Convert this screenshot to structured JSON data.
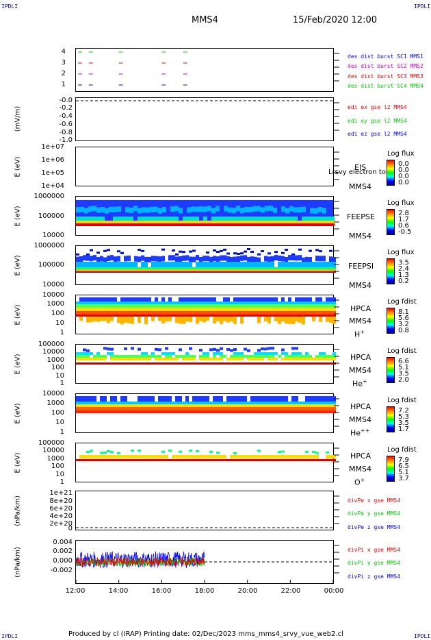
{
  "header": {
    "corner_left": "IPDLI",
    "corner_right": "IPDLI",
    "spacecraft": "MMS4",
    "date": "15/Feb/2020 12:00"
  },
  "footer": {
    "text": "Produced by cl (IRAP)   Printing date: 02/Dec/2023   mms_mms4_srvy_vue_web2.cl"
  },
  "colors": {
    "sc1": "#0000ff",
    "sc2": "#cc00cc",
    "sc3": "#ee0000",
    "sc4": "#00cc00"
  },
  "x_ticks": [
    "12:00",
    "14:00",
    "16:00",
    "18:00",
    "20:00",
    "22:00",
    "00:00"
  ],
  "chart_data": [
    {
      "type": "scatter",
      "panel": "des-dist-burst",
      "y_ticks": [
        "4",
        "3",
        "2",
        "1"
      ],
      "legend": [
        "des dist burst SC1 MMS1",
        "des dist burst SC2 MMS2",
        "des dist burst SC3 MMS3",
        "des dist burst SC4 MMS4"
      ],
      "series": [
        {
          "name": "des dist burst SC1 MMS1",
          "y": 1,
          "x_hours": [
            12.1,
            12.6,
            14.0,
            16.0,
            17.0
          ]
        },
        {
          "name": "des dist burst SC2 MMS2",
          "y": 2,
          "x_hours": [
            12.1,
            12.6,
            14.0,
            16.0,
            17.0
          ]
        },
        {
          "name": "des dist burst SC3 MMS3",
          "y": 3,
          "x_hours": [
            12.1,
            12.6,
            14.0,
            16.0,
            17.0
          ]
        },
        {
          "name": "des dist burst SC4 MMS4",
          "y": 4,
          "x_hours": [
            12.1,
            12.6,
            14.0,
            16.0,
            17.0
          ]
        }
      ]
    },
    {
      "type": "line",
      "panel": "edi",
      "ylabel": "(mV/m)",
      "y_ticks": [
        "-0.0",
        "-0.2",
        "-0.4",
        "-0.6",
        "-0.8",
        "-1.0"
      ],
      "legend": [
        "edi ex gse l2 MMS4",
        "edi ey gse l2 MMS4",
        "edi ez gse l2 MMS4"
      ]
    },
    {
      "type": "heatmap",
      "panel": "eis",
      "ylabel": "E (eV)",
      "y_ticks": [
        "1e+07",
        "1e+06",
        "1e+05",
        "1e+04"
      ],
      "instrument": "EIS",
      "sc": "MMS4",
      "overlay_text": "Lrsvy electron to",
      "colorbar_title": "Log flux",
      "colorbar_values": [
        "0.0",
        "0.0",
        "0.0",
        "0.0"
      ]
    },
    {
      "type": "heatmap",
      "panel": "feepse",
      "ylabel": "E (eV)",
      "y_ticks": [
        "1000000",
        "100000",
        "10000"
      ],
      "instrument": "FEEPSE",
      "sc": "MMS4",
      "colorbar_title": "Log flux",
      "colorbar_values": [
        "2.8",
        "1.7",
        "0.6",
        "-0.5"
      ]
    },
    {
      "type": "heatmap",
      "panel": "feepsi",
      "ylabel": "E (eV)",
      "y_ticks": [
        "1000000",
        "100000",
        "10000"
      ],
      "instrument": "FEEPSI",
      "sc": "MMS4",
      "colorbar_title": "Log flux",
      "colorbar_values": [
        "3.5",
        "2.4",
        "1.3",
        "0.2"
      ]
    },
    {
      "type": "heatmap",
      "panel": "hpca-h",
      "ylabel": "E (eV)",
      "y_ticks": [
        "10000",
        "1000",
        "100",
        "10",
        "1"
      ],
      "instrument": "HPCA",
      "sc": "MMS4",
      "species": "H",
      "species_sup": "+",
      "colorbar_title": "Log fdist",
      "colorbar_values": [
        "8.1",
        "5.6",
        "3.2",
        "0.8"
      ]
    },
    {
      "type": "heatmap",
      "panel": "hpca-he",
      "ylabel": "E (eV)",
      "y_ticks": [
        "100000",
        "10000",
        "1000",
        "100",
        "10",
        "1"
      ],
      "instrument": "HPCA",
      "sc": "MMS4",
      "species": "He",
      "species_sup": "+",
      "colorbar_title": "Log fdist",
      "colorbar_values": [
        "6.6",
        "5.1",
        "3.5",
        "2.0"
      ]
    },
    {
      "type": "heatmap",
      "panel": "hpca-he2",
      "ylabel": "E (eV)",
      "y_ticks": [
        "10000",
        "1000",
        "100",
        "10",
        "1"
      ],
      "instrument": "HPCA",
      "sc": "MMS4",
      "species": "He",
      "species_sup": "++",
      "colorbar_title": "Log fdist",
      "colorbar_values": [
        "7.2",
        "5.3",
        "3.5",
        "1.7"
      ]
    },
    {
      "type": "heatmap",
      "panel": "hpca-o",
      "ylabel": "E (eV)",
      "y_ticks": [
        "100000",
        "10000",
        "1000",
        "100",
        "10",
        "1"
      ],
      "instrument": "HPCA",
      "sc": "MMS4",
      "species": "O",
      "species_sup": "+",
      "colorbar_title": "Log fdist",
      "colorbar_values": [
        "7.9",
        "6.5",
        "5.1",
        "3.7"
      ]
    },
    {
      "type": "line",
      "panel": "divpe",
      "ylabel": "(nPa/km)",
      "y_ticks": [
        "1e+21",
        "8e+20",
        "6e+20",
        "4e+20",
        "2e+20",
        "0"
      ],
      "legend": [
        "divPe x gse MMS4",
        "divPe y gse MMS4",
        "divPe z gse MMS4"
      ]
    },
    {
      "type": "line",
      "panel": "divpi",
      "ylabel": "(nPa/km)",
      "y_ticks": [
        "0.004",
        "0.002",
        "0.000",
        "-0.002"
      ],
      "ylim": [
        -0.004,
        0.004
      ],
      "legend": [
        "divPi x gse MMS4",
        "divPi y gse MMS4",
        "divPi z gse MMS4"
      ],
      "data_end_hour": 18.0
    }
  ]
}
